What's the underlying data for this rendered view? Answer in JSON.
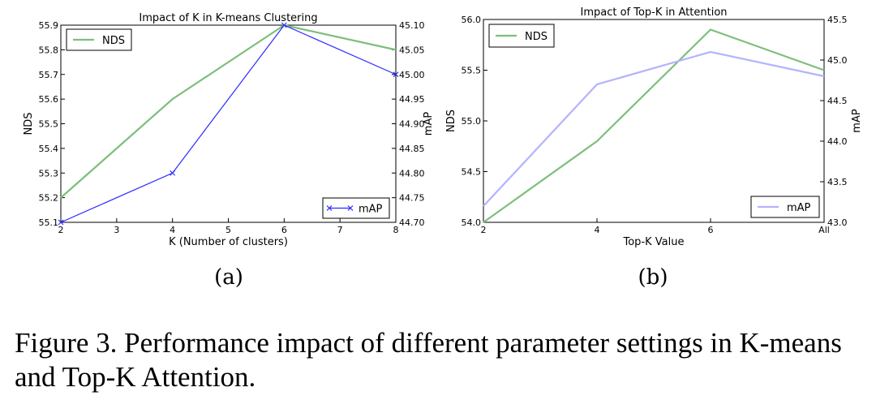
{
  "chart_data": [
    {
      "type": "line",
      "title": "Impact of K in K-means Clustering",
      "xlabel": "K (Number of clusters)",
      "ylabel_left": "NDS",
      "ylabel_right": "mAP",
      "x": [
        2,
        4,
        6,
        8
      ],
      "xlim": [
        2,
        8
      ],
      "xticks": [
        "2",
        "3",
        "4",
        "5",
        "6",
        "7",
        "8"
      ],
      "ylim_left": [
        55.1,
        55.9
      ],
      "yticks_left": [
        "55.1",
        "55.2",
        "55.3",
        "55.4",
        "55.5",
        "55.6",
        "55.7",
        "55.8",
        "55.9"
      ],
      "ylim_right": [
        44.7,
        45.1
      ],
      "yticks_right": [
        "44.70",
        "44.75",
        "44.80",
        "44.85",
        "44.90",
        "44.95",
        "45.00",
        "45.05",
        "45.10"
      ],
      "series": [
        {
          "name": "NDS",
          "axis": "left",
          "color": "#7cbf7c",
          "values": [
            55.2,
            55.6,
            55.9,
            55.8
          ]
        },
        {
          "name": "mAP",
          "axis": "right",
          "color": "#2b2bff",
          "marker": "x",
          "values": [
            44.7,
            44.8,
            45.1,
            45.0
          ]
        }
      ],
      "legend": [
        {
          "name": "NDS",
          "position": "top-left"
        },
        {
          "name": "mAP",
          "position": "bottom-right"
        }
      ],
      "sublabel": "(a)"
    },
    {
      "type": "line",
      "title": "Impact of Top-K in Attention",
      "xlabel": "Top-K Value",
      "ylabel_left": "NDS",
      "ylabel_right": "mAP",
      "categories": [
        "2",
        "4",
        "6",
        "All"
      ],
      "ylim_left": [
        54.0,
        56.0
      ],
      "yticks_left": [
        "54.0",
        "54.5",
        "55.0",
        "55.5",
        "56.0"
      ],
      "ylim_right": [
        43.0,
        45.5
      ],
      "yticks_right": [
        "43.0",
        "43.5",
        "44.0",
        "44.5",
        "45.0",
        "45.5"
      ],
      "series": [
        {
          "name": "NDS",
          "axis": "left",
          "color": "#7cbf7c",
          "values": [
            54.0,
            54.8,
            55.9,
            55.5
          ]
        },
        {
          "name": "mAP",
          "axis": "right",
          "color": "#b3b3ff",
          "values": [
            43.2,
            44.7,
            45.1,
            44.8
          ]
        }
      ],
      "legend": [
        {
          "name": "NDS",
          "position": "top-left"
        },
        {
          "name": "mAP",
          "position": "bottom-right"
        }
      ],
      "sublabel": "(b)"
    }
  ],
  "caption": "Figure 3.  Performance impact of different parameter settings in K-means and Top-K Attention."
}
